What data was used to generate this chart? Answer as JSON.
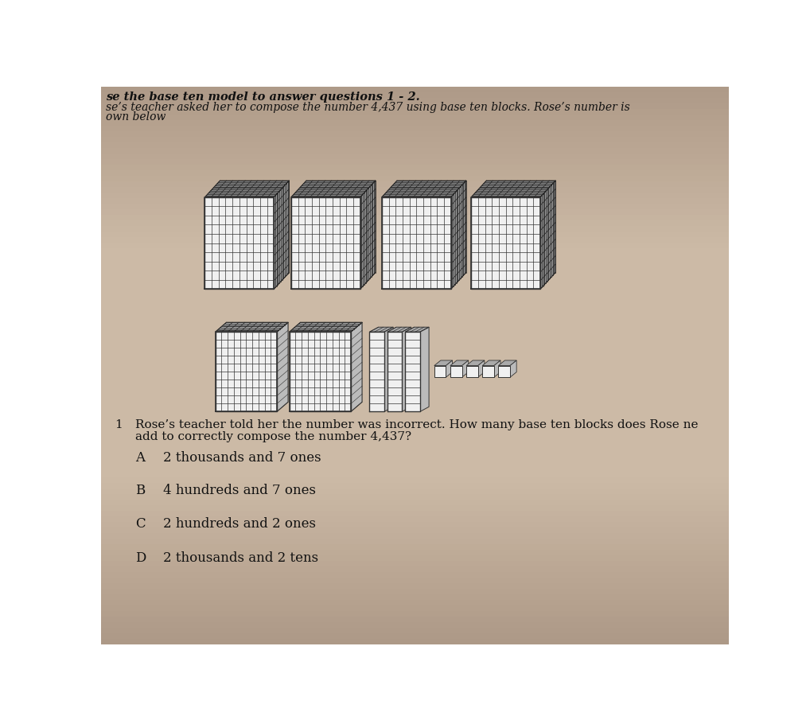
{
  "bg_color_top": "#b0a090",
  "bg_color_mid": "#c8bdb0",
  "bg_color_bot": "#a89888",
  "title_line1": "se the base ten model to answer questions 1 - 2.",
  "title_line2": "se’s teacher asked her to compose the number 4,437 using base ten blocks. Rose’s number is",
  "title_line3": "own below",
  "question_num": "1",
  "question_text1": "Rose’s teacher told her the number was incorrect. How many base ten blocks does Rose ne",
  "question_text2": "add to correctly compose the number 4,437?",
  "choices": [
    {
      "letter": "A",
      "text": "2 thousands and 7 ones"
    },
    {
      "letter": "B",
      "text": "4 hundreds and 7 ones"
    },
    {
      "letter": "C",
      "text": "2 hundreds and 2 ones"
    },
    {
      "letter": "D",
      "text": "2 thousands and 2 tens"
    }
  ],
  "text_color": "#111111",
  "grid_color": "#333333",
  "block_face_color": "#f0f0f0",
  "block_hatch_color": "#444444",
  "block_side_color": "#aaaaaa"
}
